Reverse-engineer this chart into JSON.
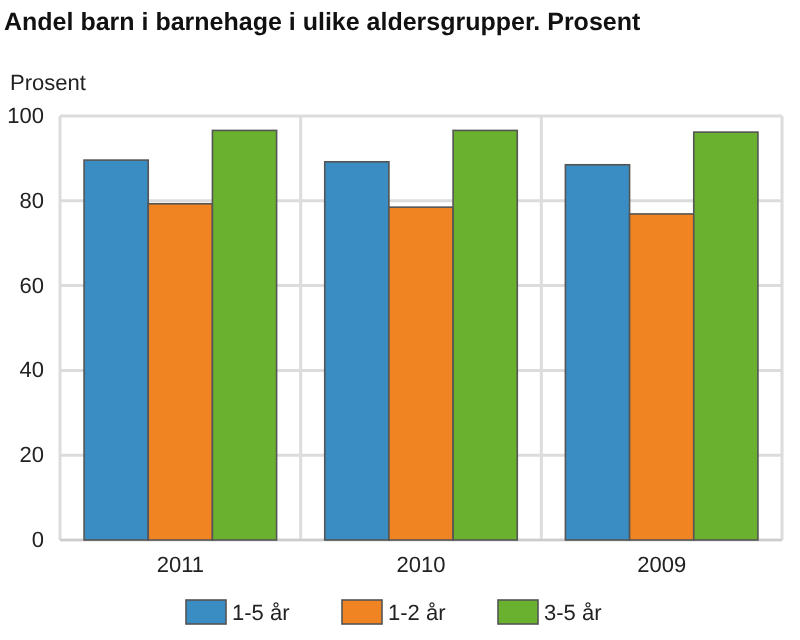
{
  "chart_data": {
    "type": "bar",
    "title": "Andel barn i barnehage i ulike aldersgrupper. Prosent",
    "ylabel": "Prosent",
    "categories": [
      "2011",
      "2010",
      "2009"
    ],
    "series": [
      {
        "name": "1-5 år",
        "color": "#3a8dc3",
        "values": [
          89.6,
          89.2,
          88.5
        ]
      },
      {
        "name": "1-2 år",
        "color": "#f08422",
        "values": [
          79.3,
          78.5,
          76.9
        ]
      },
      {
        "name": "3-5 år",
        "color": "#6ab12f",
        "values": [
          96.6,
          96.6,
          96.2
        ]
      }
    ],
    "ylim": [
      0,
      100
    ],
    "yticks": [
      0,
      20,
      40,
      60,
      80,
      100
    ],
    "grid": true,
    "legend": "bottom"
  }
}
